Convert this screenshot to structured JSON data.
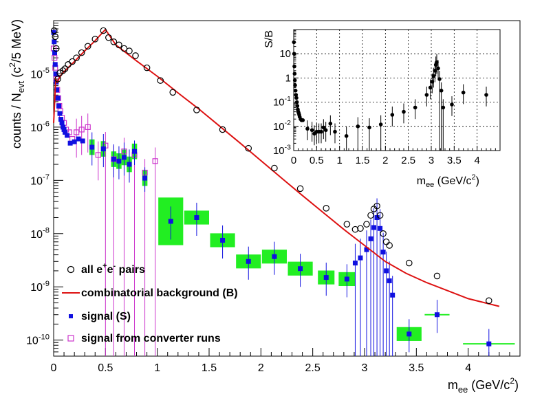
{
  "chart_data": [
    {
      "type": "scatter",
      "title": "",
      "xlabel": "m_ee (GeV/c²)",
      "ylabel": "counts / N_evt (c²/5 MeV)",
      "xlabel_parts": {
        "base": "m",
        "sub": "ee",
        "rest": " (GeV/c",
        "sup": "2",
        "end": ")"
      },
      "ylabel_parts": {
        "p1": "counts / N",
        "sub": "evt",
        "p2": "  (c",
        "sup": "2",
        "p3": "/5 MeV)"
      },
      "xlim": [
        0,
        4.5
      ],
      "ylim": [
        5e-11,
        0.0001
      ],
      "yscale": "log",
      "x_ticks": [
        "0",
        "0.5",
        "1",
        "1.5",
        "2",
        "2.5",
        "3",
        "3.5",
        "4"
      ],
      "y_ticks": [
        "10^-10",
        "10^-9",
        "10^-8",
        "10^-7",
        "10^-6",
        "10^-5"
      ],
      "legend_position": "bottom-left",
      "legend": {
        "all_pairs": {
          "a": "all e",
          "s1": "+",
          "b": "e",
          "s2": "-",
          "c": " pairs"
        },
        "background": "combinatorial background (B)",
        "signal": "signal (S)",
        "converter": "signal from converter runs"
      },
      "colors": {
        "all_pairs": "#000000",
        "background": "#dd1111",
        "signal": "#1010e0",
        "converter": "#cc33cc",
        "syst_box": "#22ee22"
      },
      "series": [
        {
          "name": "all e+e- pairs",
          "x": [
            0.005,
            0.015,
            0.025,
            0.04,
            0.06,
            0.09,
            0.11,
            0.14,
            0.18,
            0.22,
            0.27,
            0.33,
            0.4,
            0.48,
            0.53,
            0.58,
            0.63,
            0.68,
            0.73,
            0.79,
            0.9,
            1.03,
            1.15,
            1.38,
            1.63,
            1.88,
            2.13,
            2.38,
            2.63,
            2.83,
            2.91,
            2.96,
            3.02,
            3.06,
            3.09,
            3.12,
            3.15,
            3.18,
            3.21,
            3.24,
            3.43,
            3.7,
            4.2
          ],
          "y": [
            6.5e-05,
            5e-05,
            3e-05,
            8e-06,
            1.05e-05,
            1.15e-05,
            1.25e-05,
            1.5e-05,
            1.7e-05,
            2e-05,
            2.5e-05,
            3.3e-05,
            4.5e-05,
            6.5e-05,
            4.8e-05,
            4e-05,
            3.5e-05,
            3e-05,
            2.7e-05,
            2.2e-05,
            1.3e-05,
            7.5e-06,
            4.5e-06,
            2.1e-06,
            9e-07,
            4e-07,
            1.7e-07,
            7e-08,
            3e-08,
            1.5e-08,
            1.2e-08,
            1.25e-08,
            1.5e-08,
            2.2e-08,
            2.9e-08,
            3.3e-08,
            2.2e-08,
            1e-08,
            7e-09,
            6e-09,
            2.8e-09,
            1.6e-09,
            5.5e-10
          ]
        },
        {
          "name": "combinatorial background (B)",
          "x": [
            0.0,
            0.01,
            0.02,
            0.035,
            0.05,
            0.08,
            0.12,
            0.2,
            0.3,
            0.4,
            0.48,
            0.5,
            0.6,
            0.8,
            1.0,
            1.2,
            1.4,
            1.6,
            1.8,
            2.0,
            2.2,
            2.4,
            2.6,
            2.8,
            3.0,
            3.2,
            3.4,
            3.6,
            3.8,
            4.0,
            4.2,
            4.3
          ],
          "y": [
            1.2e-06,
            3e-06,
            8e-06,
            7e-06,
            8e-06,
            1e-05,
            1.2e-05,
            1.7e-05,
            2.7e-05,
            4.2e-05,
            6.2e-05,
            6.8e-05,
            3.5e-05,
            1.75e-05,
            9e-06,
            4.4e-06,
            2.2e-06,
            1.05e-06,
            5e-07,
            2.35e-07,
            1.1e-07,
            5.2e-08,
            2.5e-08,
            1.2e-08,
            6e-09,
            3e-09,
            1.8e-09,
            1.2e-09,
            8.5e-10,
            6e-10,
            4.8e-10,
            4.3e-10
          ]
        },
        {
          "name": "signal (S)",
          "x": [
            0.0,
            0.005,
            0.01,
            0.015,
            0.02,
            0.025,
            0.03,
            0.04,
            0.05,
            0.06,
            0.07,
            0.08,
            0.09,
            0.1,
            0.11,
            0.13,
            0.16,
            0.2,
            0.24,
            0.28,
            0.37,
            0.48,
            0.58,
            0.63,
            0.68,
            0.73,
            0.78,
            0.88,
            1.13,
            1.38,
            1.63,
            1.88,
            2.13,
            2.38,
            2.63,
            2.83,
            2.91,
            2.96,
            3.02,
            3.06,
            3.09,
            3.12,
            3.15,
            3.18,
            3.21,
            3.24,
            3.27,
            3.43,
            3.7,
            4.2
          ],
          "y": [
            6e-05,
            4e-05,
            2.5e-05,
            1.5e-05,
            1e-05,
            7e-06,
            5e-06,
            3.5e-06,
            2.5e-06,
            1.8e-06,
            1.4e-06,
            1.2e-06,
            1e-06,
            9e-07,
            8e-07,
            7e-07,
            5e-07,
            5.3e-07,
            6e-07,
            5.5e-07,
            4.2e-07,
            3.9e-07,
            2.5e-07,
            2.3e-07,
            2.7e-07,
            2e-07,
            3.5e-07,
            1.1e-07,
            1.7e-08,
            2e-08,
            7.5e-09,
            3e-09,
            3.7e-09,
            2.2e-09,
            1.5e-09,
            1.4e-09,
            2.8e-09,
            3.5e-09,
            5e-09,
            8e-09,
            1.3e-08,
            2e-08,
            1.25e-08,
            4.5e-09,
            2e-09,
            1.3e-09,
            7e-10,
            1.3e-10,
            3e-10,
            8.5e-11
          ]
        },
        {
          "name": "signal from converter runs",
          "x": [
            0.0,
            0.008,
            0.015,
            0.025,
            0.035,
            0.045,
            0.055,
            0.065,
            0.08,
            0.1,
            0.12,
            0.15,
            0.18,
            0.22,
            0.27,
            0.33,
            0.43,
            0.5,
            0.58,
            0.68,
            0.78,
            0.88,
            0.98
          ],
          "y": [
            3e-05,
            2e-05,
            1.3e-05,
            8e-06,
            5e-06,
            3.5e-06,
            2.5e-06,
            2e-06,
            1.5e-06,
            1.2e-06,
            9e-07,
            8e-07,
            6e-07,
            8e-07,
            9e-07,
            1e-06,
            3e-07,
            4.5e-07,
            2.5e-07,
            3.5e-07,
            3e-07,
            1.4e-07,
            2.3e-07
          ]
        }
      ]
    },
    {
      "type": "scatter",
      "title": "",
      "ylabel": "S/B",
      "xlabel": "m_ee (GeV/c²)",
      "xlabel_parts": {
        "base": "m",
        "sub": "ee",
        "rest": " (GeV/c",
        "sup": "2",
        "end": ")"
      },
      "xlim": [
        0,
        4.5
      ],
      "ylim": [
        0.001,
        100
      ],
      "yscale": "log",
      "grid": true,
      "x_ticks": [
        "0",
        "0.5",
        "1",
        "1.5",
        "2",
        "2.5",
        "3",
        "3.5",
        "4"
      ],
      "y_ticks": [
        "10^-3",
        "10^-2",
        "10^-1",
        "1",
        "10"
      ],
      "series": [
        {
          "name": "S/B",
          "x": [
            0.005,
            0.01,
            0.015,
            0.02,
            0.025,
            0.03,
            0.04,
            0.05,
            0.06,
            0.07,
            0.08,
            0.09,
            0.1,
            0.11,
            0.12,
            0.13,
            0.15,
            0.17,
            0.2,
            0.3,
            0.4,
            0.45,
            0.5,
            0.55,
            0.6,
            0.65,
            0.7,
            0.8,
            0.9,
            1.15,
            1.4,
            1.65,
            1.9,
            2.15,
            2.4,
            2.65,
            2.9,
            2.98,
            3.02,
            3.05,
            3.08,
            3.1,
            3.12,
            3.15,
            3.18,
            3.22,
            3.26,
            3.45,
            3.7,
            4.2
          ],
          "y": [
            30,
            10,
            3,
            1.5,
            0.8,
            0.5,
            0.3,
            0.2,
            0.15,
            0.1,
            0.07,
            0.05,
            0.04,
            0.035,
            0.03,
            0.025,
            0.02,
            0.018,
            0.018,
            0.008,
            0.007,
            0.005,
            0.006,
            0.006,
            0.006,
            0.009,
            0.007,
            0.013,
            0.006,
            0.004,
            0.01,
            0.009,
            0.012,
            0.03,
            0.04,
            0.06,
            0.2,
            0.4,
            0.7,
            1.2,
            2,
            3.5,
            4.5,
            2.5,
            0.9,
            0.3,
            0.06,
            0.08,
            0.25,
            0.2
          ]
        }
      ]
    }
  ]
}
